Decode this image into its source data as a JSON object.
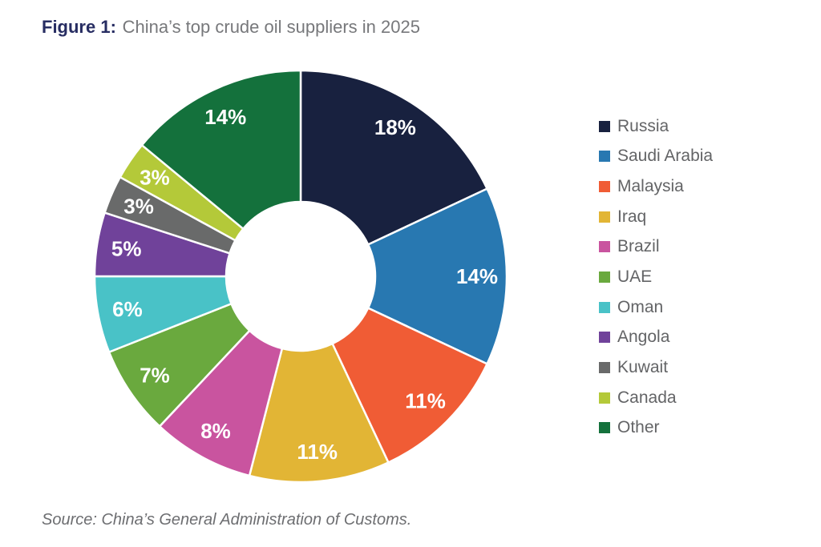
{
  "figure": {
    "label": "Figure 1:",
    "title": "China’s top crude oil suppliers in 2025"
  },
  "source": {
    "text": "Source: China’s General Administration of Customs."
  },
  "colors": {
    "figure_label": "#272d62",
    "title_text": "#77787b",
    "legend_text": "#636466",
    "source_text": "#6d6e71",
    "slice_label": "#ffffff",
    "background": "#ffffff"
  },
  "chart_data": {
    "type": "pie",
    "subtype": "donut",
    "title": "China’s top crude oil suppliers in 2025",
    "unit": "percent",
    "start_angle_deg": 0,
    "direction": "clockwise",
    "inner_radius_ratio": 0.36,
    "legend_position": "right",
    "total": 100,
    "segments": [
      {
        "id": "russia",
        "name": "Russia",
        "value": 18,
        "label": "18%",
        "color": "#18213f"
      },
      {
        "id": "saudi-arabia",
        "name": "Saudi Arabia",
        "value": 14,
        "label": "14%",
        "color": "#2878b1"
      },
      {
        "id": "malaysia",
        "name": "Malaysia",
        "value": 11,
        "label": "11%",
        "color": "#f05c35"
      },
      {
        "id": "iraq",
        "name": "Iraq",
        "value": 11,
        "label": "11%",
        "color": "#e2b535"
      },
      {
        "id": "brazil",
        "name": "Brazil",
        "value": 8,
        "label": "8%",
        "color": "#c9549f"
      },
      {
        "id": "uae",
        "name": "UAE",
        "value": 7,
        "label": "7%",
        "color": "#6aa93e"
      },
      {
        "id": "oman",
        "name": "Oman",
        "value": 6,
        "label": "6%",
        "color": "#49c2c7"
      },
      {
        "id": "angola",
        "name": "Angola",
        "value": 5,
        "label": "5%",
        "color": "#70429a"
      },
      {
        "id": "kuwait",
        "name": "Kuwait",
        "value": 3,
        "label": "3%",
        "color": "#696a6a"
      },
      {
        "id": "canada",
        "name": "Canada",
        "value": 3,
        "label": "3%",
        "color": "#b4c939"
      },
      {
        "id": "other",
        "name": "Other",
        "value": 14,
        "label": "14%",
        "color": "#14713c"
      }
    ]
  }
}
